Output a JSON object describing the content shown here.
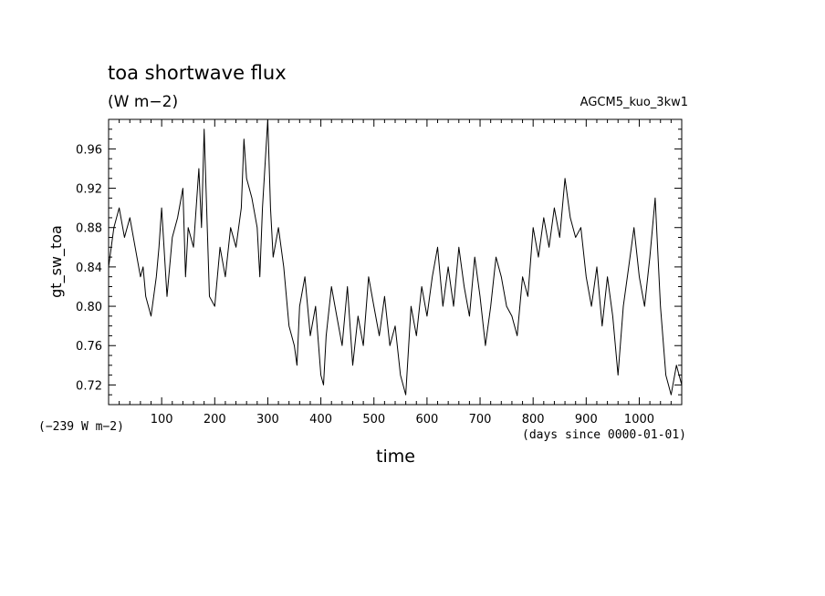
{
  "chart_data": {
    "type": "line",
    "title": "toa shortwave flux",
    "subtitle": "(W m−2)",
    "run_label": "AGCM5_kuo_3kw1",
    "ylabel": "gt_sw_toa",
    "xlabel": "time",
    "y_offset_note": "(−239 W m−2)",
    "x_units_note": "(days since 0000-01-01)",
    "xlim": [
      0,
      1080
    ],
    "ylim": [
      0.7,
      0.99
    ],
    "x_ticks": [
      100,
      200,
      300,
      400,
      500,
      600,
      700,
      800,
      900,
      1000
    ],
    "y_ticks": [
      0.72,
      0.76,
      0.8,
      0.84,
      0.88,
      0.92,
      0.96
    ],
    "grid": false,
    "series": [
      {
        "x": [
          0,
          10,
          20,
          30,
          40,
          50,
          60,
          65,
          70,
          80,
          90,
          95,
          100,
          110,
          120,
          130,
          140,
          145,
          150,
          160,
          170,
          175,
          180,
          190,
          200,
          210,
          220,
          230,
          240,
          250,
          255,
          260,
          270,
          280,
          285,
          290,
          300,
          305,
          310,
          320,
          330,
          340,
          350,
          355,
          360,
          370,
          380,
          390,
          400,
          405,
          410,
          420,
          430,
          440,
          450,
          460,
          470,
          480,
          490,
          500,
          510,
          520,
          530,
          540,
          550,
          560,
          570,
          580,
          590,
          600,
          610,
          620,
          630,
          640,
          650,
          660,
          670,
          680,
          690,
          700,
          710,
          720,
          730,
          740,
          750,
          760,
          770,
          780,
          790,
          800,
          810,
          820,
          830,
          840,
          850,
          860,
          870,
          880,
          890,
          900,
          910,
          920,
          930,
          940,
          950,
          960,
          970,
          980,
          990,
          1000,
          1010,
          1020,
          1030,
          1040,
          1050,
          1060,
          1070,
          1080
        ],
        "values": [
          0.84,
          0.88,
          0.9,
          0.87,
          0.89,
          0.86,
          0.83,
          0.84,
          0.81,
          0.79,
          0.83,
          0.86,
          0.9,
          0.81,
          0.87,
          0.89,
          0.92,
          0.83,
          0.88,
          0.86,
          0.94,
          0.88,
          0.98,
          0.81,
          0.8,
          0.86,
          0.83,
          0.88,
          0.86,
          0.9,
          0.97,
          0.93,
          0.91,
          0.88,
          0.83,
          0.9,
          0.99,
          0.9,
          0.85,
          0.88,
          0.84,
          0.78,
          0.76,
          0.74,
          0.8,
          0.83,
          0.77,
          0.8,
          0.73,
          0.72,
          0.77,
          0.82,
          0.79,
          0.76,
          0.82,
          0.74,
          0.79,
          0.76,
          0.83,
          0.8,
          0.77,
          0.81,
          0.76,
          0.78,
          0.73,
          0.71,
          0.8,
          0.77,
          0.82,
          0.79,
          0.83,
          0.86,
          0.8,
          0.84,
          0.8,
          0.86,
          0.82,
          0.79,
          0.85,
          0.81,
          0.76,
          0.8,
          0.85,
          0.83,
          0.8,
          0.79,
          0.77,
          0.83,
          0.81,
          0.88,
          0.85,
          0.89,
          0.86,
          0.9,
          0.87,
          0.93,
          0.89,
          0.87,
          0.88,
          0.83,
          0.8,
          0.84,
          0.78,
          0.83,
          0.79,
          0.73,
          0.8,
          0.84,
          0.88,
          0.83,
          0.8,
          0.85,
          0.91,
          0.8,
          0.73,
          0.71,
          0.74,
          0.72
        ]
      }
    ]
  }
}
